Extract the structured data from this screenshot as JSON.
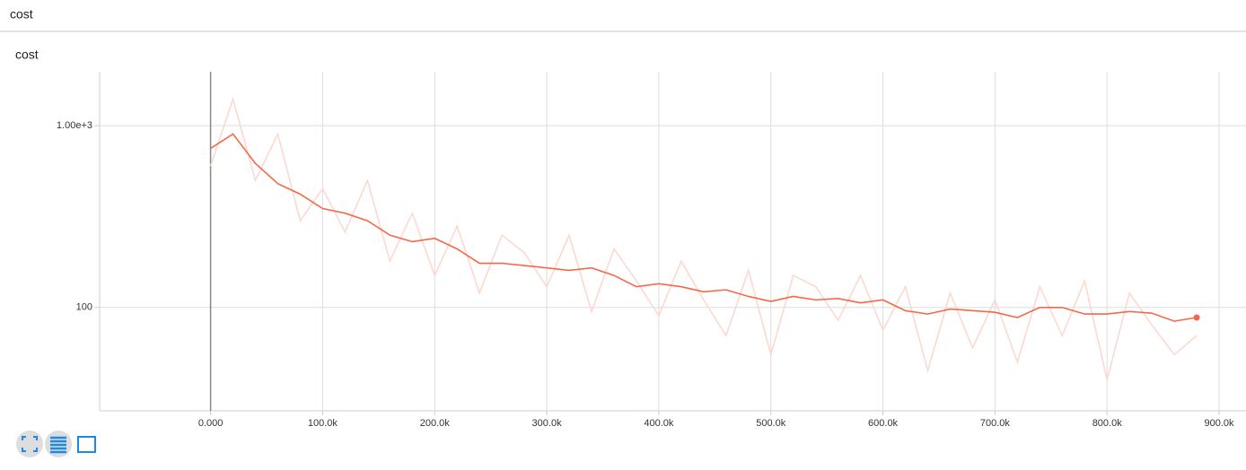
{
  "header": {
    "title": "cost"
  },
  "chart_data": {
    "type": "line",
    "title": "cost",
    "x": [
      0,
      20000,
      40000,
      60000,
      80000,
      100000,
      120000,
      140000,
      160000,
      180000,
      200000,
      220000,
      240000,
      260000,
      280000,
      300000,
      320000,
      340000,
      360000,
      380000,
      400000,
      420000,
      440000,
      460000,
      480000,
      500000,
      520000,
      540000,
      560000,
      580000,
      600000,
      620000,
      640000,
      660000,
      680000,
      700000,
      720000,
      740000,
      760000,
      780000,
      800000,
      820000,
      840000,
      860000,
      880000
    ],
    "series": [
      {
        "color": "#fcd9d0",
        "values": [
          600,
          1400,
          500,
          900,
          300,
          450,
          260,
          500,
          180,
          330,
          150,
          280,
          120,
          250,
          200,
          130,
          250,
          95,
          210,
          140,
          90,
          180,
          110,
          70,
          160,
          55,
          150,
          130,
          85,
          150,
          75,
          130,
          45,
          120,
          60,
          110,
          50,
          130,
          70,
          140,
          40,
          120,
          80,
          55,
          70
        ]
      },
      {
        "color": "#f4684a",
        "values": [
          750,
          900,
          620,
          480,
          420,
          350,
          330,
          300,
          250,
          230,
          240,
          210,
          175,
          175,
          170,
          165,
          160,
          165,
          150,
          130,
          135,
          130,
          122,
          125,
          115,
          108,
          115,
          110,
          112,
          106,
          110,
          96,
          92,
          98,
          96,
          94,
          88,
          100,
          100,
          92,
          92,
          95,
          93,
          84,
          88
        ]
      }
    ],
    "xlim": [
      -99000,
      924000
    ],
    "xticks": [
      {
        "value": 0,
        "label": "0.000"
      },
      {
        "value": 100000,
        "label": "100.0k"
      },
      {
        "value": 200000,
        "label": "200.0k"
      },
      {
        "value": 300000,
        "label": "300.0k"
      },
      {
        "value": 400000,
        "label": "400.0k"
      },
      {
        "value": 500000,
        "label": "500.0k"
      },
      {
        "value": 600000,
        "label": "600.0k"
      },
      {
        "value": 700000,
        "label": "700.0k"
      },
      {
        "value": 800000,
        "label": "800.0k"
      },
      {
        "value": 900000,
        "label": "900.0k"
      }
    ],
    "ylim": [
      27,
      1980
    ],
    "yticks": [
      {
        "value": 1000,
        "label": "1.00e+3"
      },
      100
    ],
    "log_y": true,
    "grid": true
  }
}
